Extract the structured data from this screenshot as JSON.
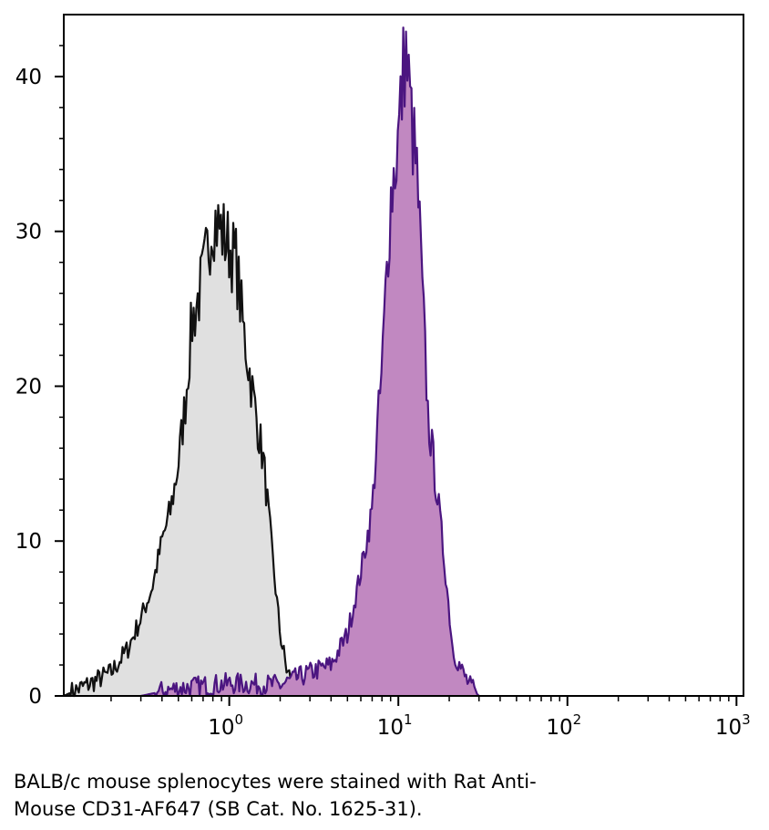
{
  "chart_data": {
    "type": "area",
    "x_scale": "log",
    "xlim": [
      0.105,
      1100
    ],
    "ylim": [
      0,
      44
    ],
    "y_ticks": [
      0,
      10,
      20,
      30,
      40
    ],
    "x_ticks": [
      {
        "value": 1,
        "base": "10",
        "exp": "0"
      },
      {
        "value": 10,
        "base": "10",
        "exp": "1"
      },
      {
        "value": 100,
        "base": "10",
        "exp": "2"
      },
      {
        "value": 1000,
        "base": "10",
        "exp": "3"
      }
    ],
    "grid": false,
    "legend": "none",
    "series": [
      {
        "color": "#111111",
        "fill": "#e0e0e0",
        "points": [
          [
            0.105,
            0
          ],
          [
            0.15,
            0.8
          ],
          [
            0.2,
            1.5
          ],
          [
            0.25,
            3
          ],
          [
            0.3,
            5
          ],
          [
            0.35,
            7
          ],
          [
            0.4,
            10
          ],
          [
            0.45,
            12
          ],
          [
            0.5,
            15
          ],
          [
            0.55,
            19
          ],
          [
            0.6,
            24
          ],
          [
            0.7,
            27
          ],
          [
            0.8,
            31
          ],
          [
            0.9,
            30
          ],
          [
            1.0,
            29
          ],
          [
            1.1,
            28
          ],
          [
            1.2,
            24
          ],
          [
            1.4,
            19
          ],
          [
            1.6,
            15
          ],
          [
            1.8,
            9
          ],
          [
            2.0,
            4
          ],
          [
            2.2,
            1.5
          ],
          [
            2.6,
            0.5
          ],
          [
            3.0,
            0
          ]
        ]
      },
      {
        "color": "#4b1580",
        "fill": "#c188c1",
        "points": [
          [
            0.3,
            0
          ],
          [
            0.5,
            0.5
          ],
          [
            1.0,
            0.8
          ],
          [
            2.0,
            0.7
          ],
          [
            3.0,
            1.5
          ],
          [
            4.0,
            2
          ],
          [
            5.0,
            4
          ],
          [
            6.0,
            8
          ],
          [
            7.0,
            12
          ],
          [
            7.5,
            17
          ],
          [
            8.0,
            21
          ],
          [
            8.5,
            27
          ],
          [
            9.0,
            32
          ],
          [
            10.0,
            36
          ],
          [
            11.0,
            42
          ],
          [
            12.0,
            37
          ],
          [
            13.0,
            33
          ],
          [
            14.0,
            25
          ],
          [
            15.0,
            18
          ],
          [
            17.0,
            13
          ],
          [
            19.0,
            8
          ],
          [
            21.0,
            3
          ],
          [
            24.0,
            1.5
          ],
          [
            27.0,
            0.5
          ],
          [
            30.0,
            0
          ]
        ]
      }
    ]
  },
  "caption": {
    "line1": "BALB/c mouse splenocytes were stained with Rat Anti-",
    "line2": "Mouse CD31-AF647 (SB Cat. No. 1625-31)."
  }
}
